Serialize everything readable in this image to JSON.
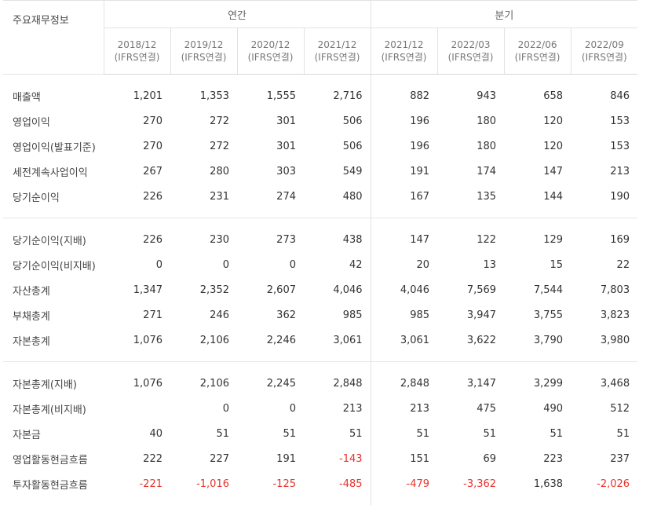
{
  "header": {
    "row_label": "주요재무정보",
    "groups": [
      {
        "label": "연간"
      },
      {
        "label": "분기"
      }
    ],
    "periods": [
      {
        "date": "2018/12",
        "basis": "(IFRS연결)"
      },
      {
        "date": "2019/12",
        "basis": "(IFRS연결)"
      },
      {
        "date": "2020/12",
        "basis": "(IFRS연결)"
      },
      {
        "date": "2021/12",
        "basis": "(IFRS연결)"
      },
      {
        "date": "2021/12",
        "basis": "(IFRS연결)"
      },
      {
        "date": "2022/03",
        "basis": "(IFRS연결)"
      },
      {
        "date": "2022/06",
        "basis": "(IFRS연결)"
      },
      {
        "date": "2022/09",
        "basis": "(IFRS연결)"
      }
    ]
  },
  "rows": [
    {
      "label": "매출액",
      "values": [
        "1,201",
        "1,353",
        "1,555",
        "2,716",
        "882",
        "943",
        "658",
        "846"
      ]
    },
    {
      "label": "영업이익",
      "values": [
        "270",
        "272",
        "301",
        "506",
        "196",
        "180",
        "120",
        "153"
      ]
    },
    {
      "label": "영업이익(발표기준)",
      "values": [
        "270",
        "272",
        "301",
        "506",
        "196",
        "180",
        "120",
        "153"
      ]
    },
    {
      "label": "세전계속사업이익",
      "values": [
        "267",
        "280",
        "303",
        "549",
        "191",
        "174",
        "147",
        "213"
      ]
    },
    {
      "label": "당기순이익",
      "values": [
        "226",
        "231",
        "274",
        "480",
        "167",
        "135",
        "144",
        "190"
      ]
    },
    {
      "label": "당기순이익(지배)",
      "values": [
        "226",
        "230",
        "273",
        "438",
        "147",
        "122",
        "129",
        "169"
      ]
    },
    {
      "label": "당기순이익(비지배)",
      "values": [
        "0",
        "0",
        "0",
        "42",
        "20",
        "13",
        "15",
        "22"
      ]
    },
    {
      "label": "자산총계",
      "values": [
        "1,347",
        "2,352",
        "2,607",
        "4,046",
        "4,046",
        "7,569",
        "7,544",
        "7,803"
      ]
    },
    {
      "label": "부채총계",
      "values": [
        "271",
        "246",
        "362",
        "985",
        "985",
        "3,947",
        "3,755",
        "3,823"
      ]
    },
    {
      "label": "자본총계",
      "values": [
        "1,076",
        "2,106",
        "2,246",
        "3,061",
        "3,061",
        "3,622",
        "3,790",
        "3,980"
      ]
    },
    {
      "label": "자본총계(지배)",
      "values": [
        "1,076",
        "2,106",
        "2,245",
        "2,848",
        "2,848",
        "3,147",
        "3,299",
        "3,468"
      ]
    },
    {
      "label": "자본총계(비지배)",
      "values": [
        "",
        "0",
        "0",
        "213",
        "213",
        "475",
        "490",
        "512"
      ]
    },
    {
      "label": "자본금",
      "values": [
        "40",
        "51",
        "51",
        "51",
        "51",
        "51",
        "51",
        "51"
      ]
    },
    {
      "label": "영업활동현금흐름",
      "values": [
        "222",
        "227",
        "191",
        "-143",
        "151",
        "69",
        "223",
        "237"
      ]
    },
    {
      "label": "투자활동현금흐름",
      "values": [
        "-221",
        "-1,016",
        "-125",
        "-485",
        "-479",
        "-3,362",
        "1,638",
        "-2,026"
      ]
    }
  ],
  "colors": {
    "negative": "#e8322b",
    "text": "#333333",
    "border": "#e2e2e2"
  }
}
